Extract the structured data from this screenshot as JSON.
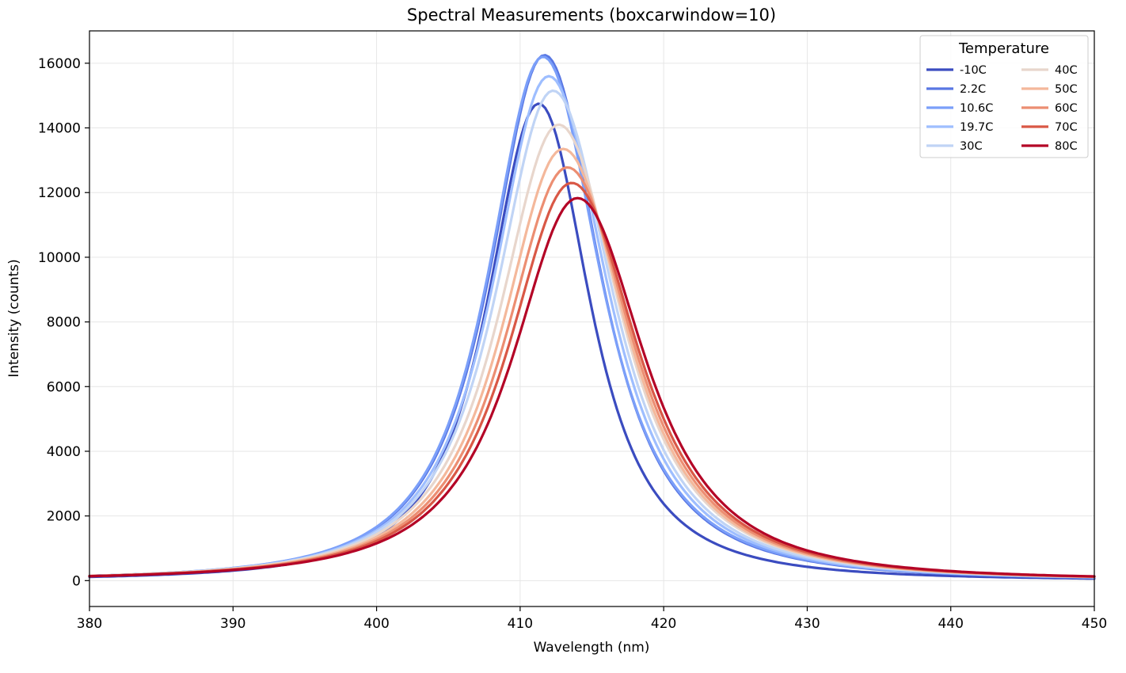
{
  "chart_data": {
    "type": "line",
    "title": "Spectral Measurements (boxcarwindow=10)",
    "xlabel": "Wavelength (nm)",
    "ylabel": "Intensity (counts)",
    "xlim": [
      380,
      450
    ],
    "ylim": [
      -800,
      17000
    ],
    "xticks": [
      380,
      390,
      400,
      410,
      420,
      430,
      440,
      450
    ],
    "yticks": [
      0,
      2000,
      4000,
      6000,
      8000,
      10000,
      12000,
      14000,
      16000
    ],
    "grid": true,
    "legend": {
      "title": "Temperature",
      "placement": "top-right",
      "columns": 2
    },
    "series": [
      {
        "name": "-10C",
        "color": "#3b4cc0",
        "peak_x": 411.3,
        "peak_y": 14750,
        "width_left": 4.2,
        "width_right": 4.2
      },
      {
        "name": "2.2C",
        "color": "#5977e3",
        "peak_x": 411.7,
        "peak_y": 16250,
        "width_left": 4.5,
        "width_right": 4.6
      },
      {
        "name": "10.6C",
        "color": "#7b9ff9",
        "peak_x": 411.6,
        "peak_y": 16200,
        "width_left": 4.5,
        "width_right": 4.7
      },
      {
        "name": "19.7C",
        "color": "#9ebeff",
        "peak_x": 412.0,
        "peak_y": 15600,
        "width_left": 4.6,
        "width_right": 4.8
      },
      {
        "name": "30C",
        "color": "#c0d4f5",
        "peak_x": 412.3,
        "peak_y": 15150,
        "width_left": 4.7,
        "width_right": 4.9
      },
      {
        "name": "40C",
        "color": "#e8d6cc",
        "peak_x": 412.7,
        "peak_y": 14100,
        "width_left": 4.9,
        "width_right": 5.1
      },
      {
        "name": "50C",
        "color": "#f4b89b",
        "peak_x": 413.0,
        "peak_y": 13350,
        "width_left": 5.0,
        "width_right": 5.2
      },
      {
        "name": "60C",
        "color": "#ec8e72",
        "peak_x": 413.3,
        "peak_y": 12780,
        "width_left": 5.1,
        "width_right": 5.3
      },
      {
        "name": "70C",
        "color": "#d95846",
        "peak_x": 413.6,
        "peak_y": 12300,
        "width_left": 5.2,
        "width_right": 5.4
      },
      {
        "name": "80C",
        "color": "#b40426",
        "peak_x": 414.0,
        "peak_y": 11830,
        "width_left": 5.3,
        "width_right": 5.5
      }
    ]
  }
}
